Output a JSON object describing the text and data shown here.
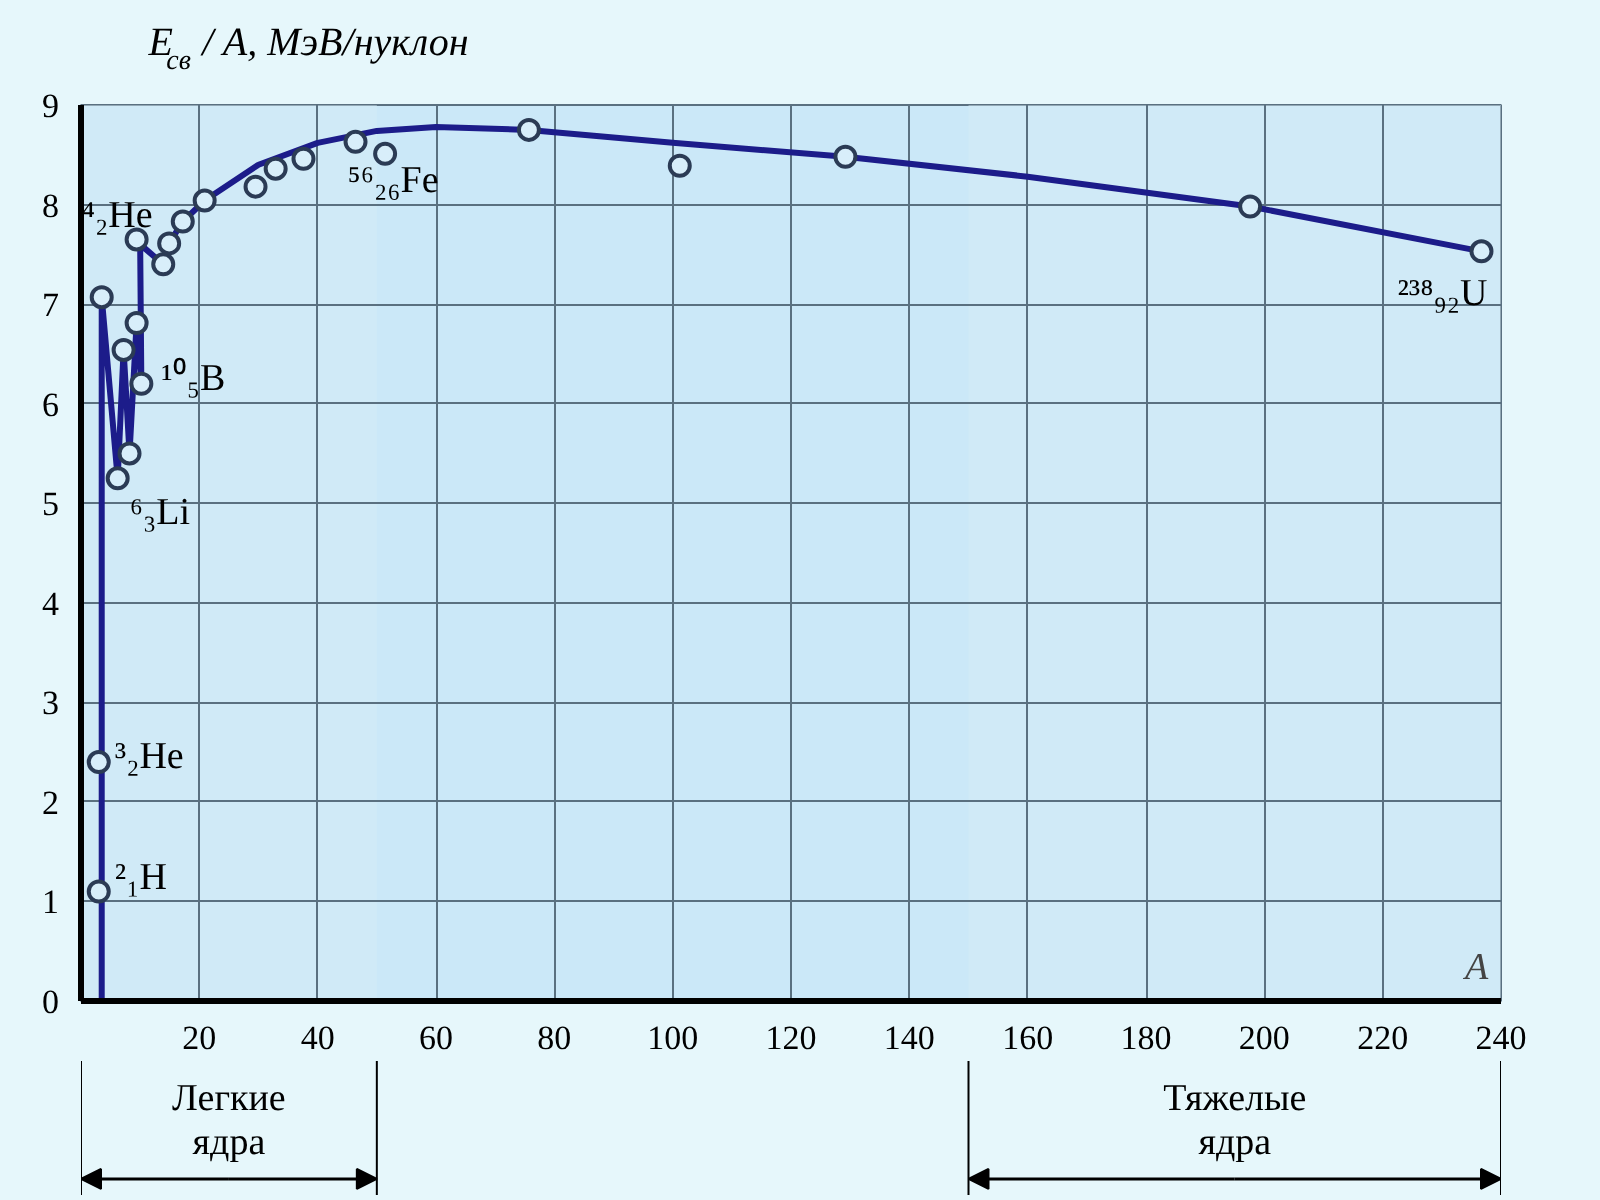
{
  "chart_data": {
    "type": "line",
    "ylabel": "E$_{св}$ / A, МэВ/нуклон",
    "xlabel": "A",
    "xlim": [
      0,
      240
    ],
    "ylim": [
      0,
      9
    ],
    "xticks": [
      20,
      40,
      60,
      80,
      100,
      120,
      140,
      160,
      180,
      200,
      220,
      240
    ],
    "yticks": [
      0,
      1,
      2,
      3,
      4,
      5,
      6,
      7,
      8,
      9
    ],
    "grid": true,
    "line_style": "solid",
    "series": [
      {
        "type": "line",
        "marker": "none",
        "color": "#1c1c8a",
        "x": [
          3.5,
          3.5,
          6.2,
          7.2,
          8.2,
          9.4,
          10.2,
          10,
          13.9,
          14.9,
          17.2,
          20.9,
          30,
          40,
          50,
          60,
          75.7,
          100,
          129.2,
          160,
          197.6,
          236.7
        ],
        "values": [
          0,
          7.07,
          5.25,
          6.54,
          5.5,
          6.81,
          6.2,
          7.6,
          7.4,
          7.61,
          7.83,
          8.04,
          8.4,
          8.62,
          8.74,
          8.78,
          8.75,
          8.62,
          8.48,
          8.28,
          7.98,
          7.53
        ]
      },
      {
        "type": "scatter",
        "marker": "circle",
        "color": "#2b3b55",
        "x": [
          3,
          3,
          3.5,
          6.2,
          7.2,
          8.2,
          9.4,
          9.4,
          10.2,
          13.9,
          14.9,
          17.2,
          20.9,
          29.5,
          32.9,
          37.6,
          46.4,
          51.4,
          75.7,
          101.2,
          129.2,
          197.6,
          236.7
        ],
        "values": [
          1.1,
          2.4,
          7.07,
          5.25,
          6.54,
          5.5,
          7.65,
          6.81,
          6.2,
          7.4,
          7.61,
          7.83,
          8.04,
          8.18,
          8.36,
          8.46,
          8.63,
          8.51,
          8.75,
          8.39,
          8.48,
          7.98,
          7.53
        ]
      }
    ],
    "annotations": [
      {
        "text": "⁴₂He",
        "x": 3.5,
        "y": 7.07
      },
      {
        "text": "¹⁰₅B",
        "x": 10.2,
        "y": 6.2
      },
      {
        "text": "⁶₃Li",
        "x": 6.2,
        "y": 5.25
      },
      {
        "text": "³₂He",
        "x": 3,
        "y": 2.4
      },
      {
        "text": "²₁H",
        "x": 3,
        "y": 1.1
      },
      {
        "text": "⁵⁶₂₆Fe",
        "x": 46.4,
        "y": 8.63
      },
      {
        "text": "²³⁸₉₂U",
        "x": 236.7,
        "y": 7.53
      }
    ],
    "bands": [
      {
        "axis": "x",
        "from": 0,
        "to": 50,
        "label": "Легкие ядра",
        "color": "#d6eef7"
      },
      {
        "axis": "x",
        "from": 150,
        "to": 240,
        "label": "Тяжелые ядра",
        "color": "#d6eef7"
      }
    ]
  }
}
